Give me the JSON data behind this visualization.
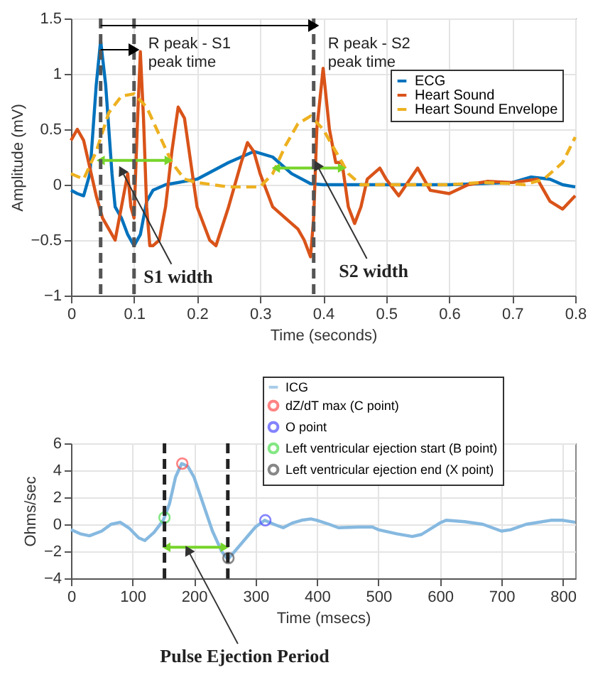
{
  "chart_data": [
    {
      "type": "line",
      "xlabel": "Time (seconds)",
      "ylabel": "Amplitude (mV)",
      "xlim": [
        0,
        0.8
      ],
      "xticks": [
        0,
        0.1,
        0.2,
        0.3,
        0.4,
        0.5,
        0.6,
        0.7,
        0.8
      ],
      "ylim": [
        -1,
        1.5
      ],
      "yticks": [
        -1,
        -0.5,
        0,
        0.5,
        1,
        1.5
      ],
      "grid": true,
      "legend": "top right",
      "series": [
        {
          "name": "ECG",
          "color": "#0072bd",
          "line_style": "solid",
          "x": [
            0,
            0.01,
            0.02,
            0.03,
            0.04,
            0.047,
            0.055,
            0.065,
            0.07,
            0.08,
            0.09,
            0.1,
            0.11,
            0.12,
            0.13,
            0.15,
            0.2,
            0.25,
            0.29,
            0.32,
            0.35,
            0.38,
            0.4,
            0.5,
            0.6,
            0.7,
            0.73,
            0.76,
            0.78,
            0.8
          ],
          "values": [
            -0.05,
            -0.08,
            -0.1,
            0.1,
            0.9,
            1.3,
            0.9,
            0.1,
            -0.2,
            -0.3,
            -0.45,
            -0.55,
            -0.45,
            -0.15,
            -0.05,
            0,
            0.05,
            0.2,
            0.3,
            0.25,
            0.1,
            0.01,
            0,
            0,
            0,
            0.02,
            0.07,
            0.05,
            0,
            -0.02
          ]
        },
        {
          "name": "Heart Sound",
          "color": "#d95319",
          "line_style": "solid",
          "x": [
            0,
            0.01,
            0.02,
            0.03,
            0.04,
            0.05,
            0.06,
            0.07,
            0.08,
            0.09,
            0.095,
            0.1,
            0.105,
            0.11,
            0.115,
            0.12,
            0.125,
            0.13,
            0.14,
            0.15,
            0.16,
            0.17,
            0.18,
            0.19,
            0.2,
            0.22,
            0.23,
            0.25,
            0.27,
            0.28,
            0.29,
            0.3,
            0.32,
            0.34,
            0.36,
            0.37,
            0.38,
            0.385,
            0.39,
            0.4,
            0.41,
            0.42,
            0.43,
            0.44,
            0.45,
            0.46,
            0.47,
            0.49,
            0.5,
            0.52,
            0.55,
            0.57,
            0.6,
            0.63,
            0.66,
            0.7,
            0.74,
            0.76,
            0.78,
            0.8
          ],
          "values": [
            0.4,
            0.5,
            0.4,
            0.15,
            -0.1,
            -0.3,
            -0.4,
            -0.5,
            -0.2,
            0.1,
            -0.2,
            -0.3,
            0.5,
            1.2,
            0.6,
            -0.2,
            -0.55,
            -0.55,
            -0.5,
            -0.2,
            0.3,
            0.7,
            0.6,
            0.2,
            -0.2,
            -0.5,
            -0.55,
            -0.2,
            0.2,
            0.38,
            0.3,
            0.1,
            -0.2,
            -0.3,
            -0.4,
            -0.5,
            -0.65,
            -0.3,
            0.5,
            1.05,
            0.5,
            0.2,
            0.2,
            -0.2,
            -0.35,
            -0.2,
            0.05,
            0.15,
            0.05,
            -0.1,
            0.15,
            -0.05,
            -0.08,
            0,
            0.03,
            0.02,
            0.05,
            -0.15,
            -0.22,
            -0.1
          ]
        },
        {
          "name": "Heart Sound Envelope",
          "color": "#edb120",
          "line_style": "dashed",
          "x": [
            0,
            0.02,
            0.04,
            0.06,
            0.08,
            0.1,
            0.12,
            0.14,
            0.16,
            0.18,
            0.2,
            0.25,
            0.3,
            0.32,
            0.34,
            0.36,
            0.38,
            0.4,
            0.42,
            0.44,
            0.46,
            0.5,
            0.6,
            0.65,
            0.7,
            0.72,
            0.75,
            0.78,
            0.8
          ],
          "values": [
            0.1,
            0.05,
            0.3,
            0.65,
            0.8,
            0.82,
            0.7,
            0.45,
            0.2,
            0.05,
            0.02,
            -0.02,
            -0.02,
            0.1,
            0.35,
            0.55,
            0.62,
            0.5,
            0.3,
            0.1,
            0,
            0,
            0,
            0.02,
            0.01,
            0,
            0.05,
            0.2,
            0.43
          ]
        },
        {
          "color": "#77d42a",
          "marker": "triangle",
          "x": [
            0.047,
            0.155
          ],
          "values": [
            0.22,
            0.22
          ]
        },
        {
          "color": "#77d42a",
          "marker": "triangle",
          "x": [
            0.325,
            0.43
          ],
          "values": [
            0.15,
            0.15
          ]
        }
      ],
      "ref_lines": [
        {
          "axis": "x",
          "value": 0.047,
          "color": "#555555",
          "line_style": "dashed"
        },
        {
          "axis": "x",
          "value": 0.1,
          "label": "R peak - S1\npeak time",
          "color": "#555555",
          "line_style": "dashed"
        },
        {
          "axis": "x",
          "value": 0.385,
          "label": "R peak - S2\npeak time",
          "color": "#555555",
          "line_style": "dashed"
        }
      ],
      "annotations": [
        {
          "text": "S1 width",
          "x": 0.08,
          "y": 0.13
        },
        {
          "text": "S2 width",
          "x": 0.39,
          "y": 0.18
        }
      ]
    },
    {
      "type": "line",
      "xlabel": "Time (msecs)",
      "ylabel": "Ohms/sec",
      "xlim": [
        0,
        820
      ],
      "xticks": [
        0,
        100,
        200,
        300,
        400,
        500,
        600,
        700,
        800
      ],
      "ylim": [
        -4,
        6
      ],
      "yticks": [
        -4,
        -2,
        0,
        2,
        4,
        6
      ],
      "grid": true,
      "legend": "top right",
      "series": [
        {
          "name": "ICG",
          "color": "#86b9e0",
          "line_style": "solid",
          "x": [
            0,
            15,
            30,
            50,
            65,
            80,
            95,
            110,
            120,
            135,
            150,
            160,
            170,
            180,
            190,
            200,
            215,
            230,
            245,
            255,
            270,
            285,
            300,
            315,
            330,
            345,
            360,
            375,
            390,
            400,
            420,
            435,
            470,
            490,
            500,
            530,
            555,
            570,
            600,
            610,
            640,
            670,
            700,
            715,
            740,
            780,
            800,
            820
          ],
          "values": [
            -0.4,
            -0.7,
            -0.85,
            -0.5,
            0,
            0.15,
            -0.3,
            -1.0,
            -1.2,
            -0.6,
            0.3,
            1.5,
            3.5,
            4.5,
            4.3,
            3.5,
            1.5,
            -0.5,
            -2.0,
            -2.6,
            -1.8,
            -1.0,
            -0.2,
            0.3,
            0.0,
            -0.25,
            0.1,
            0.3,
            0.4,
            0.3,
            0.0,
            -0.25,
            -0.2,
            -0.2,
            -0.4,
            -0.7,
            -0.9,
            -0.75,
            0.1,
            0.3,
            0.2,
            0.0,
            -0.5,
            -0.4,
            0.0,
            0.3,
            0.3,
            0.15
          ]
        },
        {
          "type": "scatter",
          "name": "dZ/dT max (C point)",
          "color": "#ff5050",
          "marker": "circle",
          "x": [
            181
          ],
          "values": [
            4.5
          ]
        },
        {
          "type": "scatter",
          "name": "O point",
          "color": "#5050ff",
          "marker": "circle",
          "x": [
            316
          ],
          "values": [
            0.3
          ]
        },
        {
          "type": "scatter",
          "name": "Left ventricular ejection start (B point)",
          "color": "#50dd50",
          "marker": "circle",
          "x": [
            152
          ],
          "values": [
            0.5
          ]
        },
        {
          "type": "scatter",
          "name": "Left ventricular ejection end (X point)",
          "color": "#555555",
          "marker": "circle",
          "x": [
            256
          ],
          "values": [
            -2.5
          ]
        },
        {
          "color": "#77d42a",
          "marker": "triangle",
          "x": [
            155,
            250
          ],
          "values": [
            -1.7,
            -1.7
          ]
        }
      ],
      "ref_lines": [
        {
          "axis": "x",
          "value": 152,
          "color": "#222222",
          "line_style": "dashed"
        },
        {
          "axis": "x",
          "value": 255,
          "color": "#222222",
          "line_style": "dashed"
        }
      ],
      "annotations": [
        {
          "text": "Pulse Ejection Period",
          "x": 190,
          "y": -1.9
        }
      ]
    }
  ]
}
